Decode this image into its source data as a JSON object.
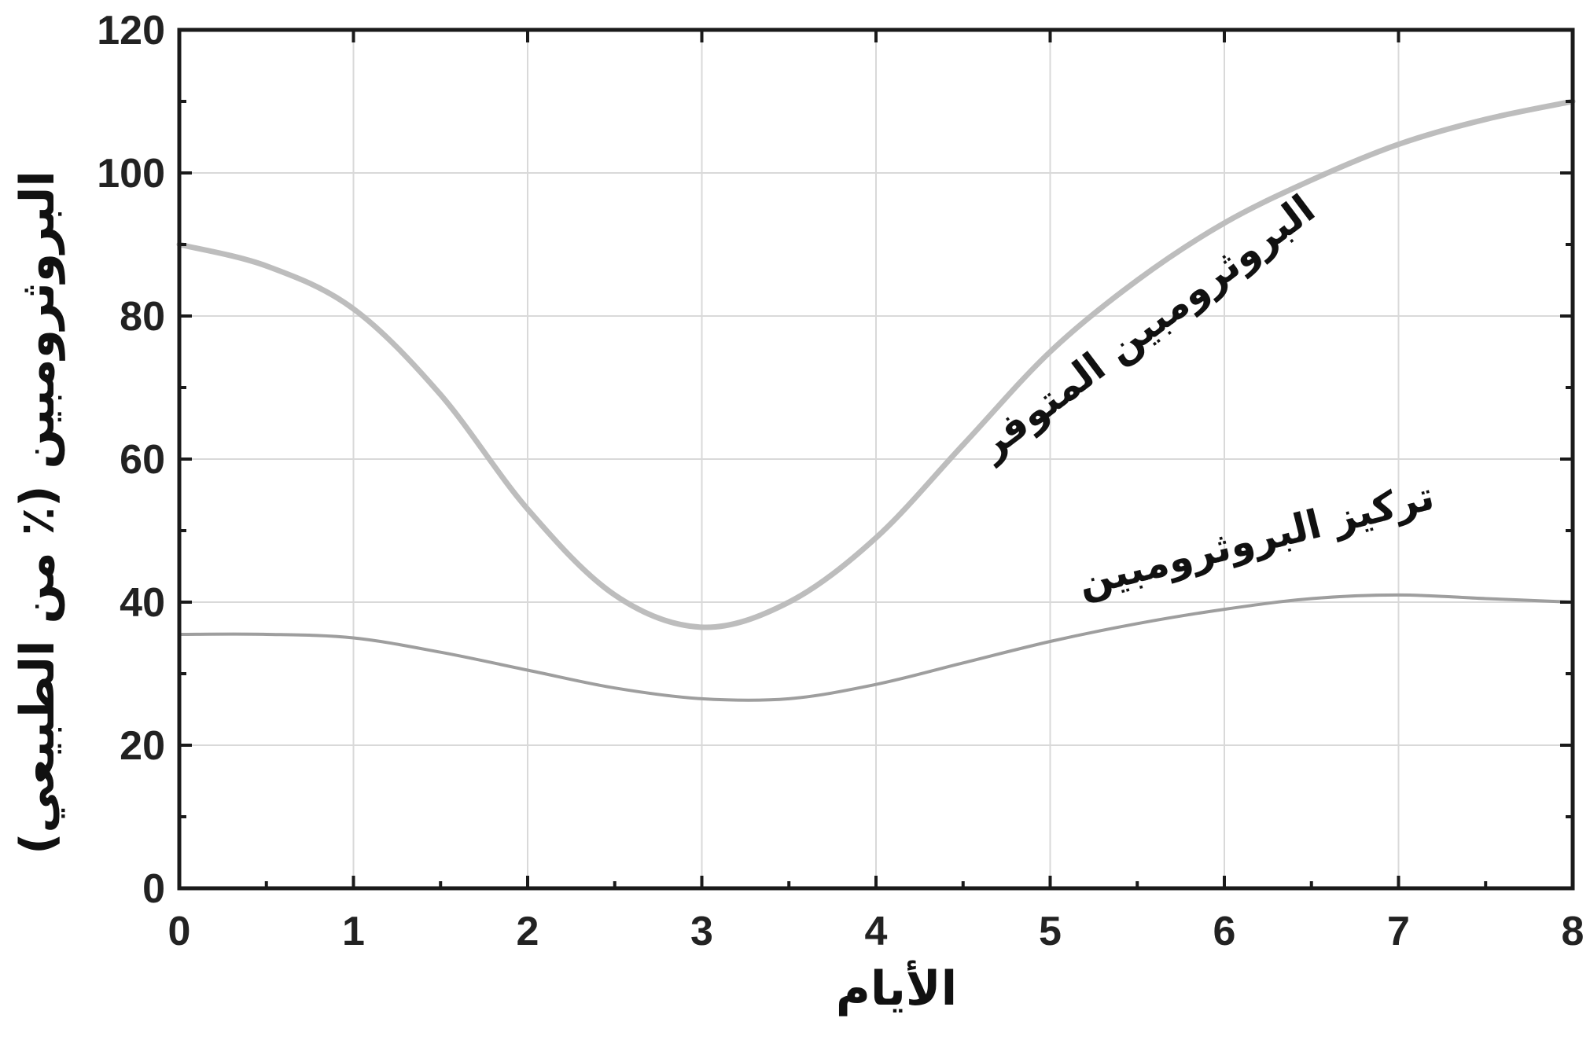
{
  "chart_data": {
    "type": "line",
    "title": "",
    "xlabel": "الأيام",
    "ylabel": "البروثرومبين (٪ من الطبيعي)",
    "xlim": [
      0,
      8
    ],
    "ylim": [
      0,
      120
    ],
    "x_ticks": [
      "0",
      "1",
      "2",
      "3",
      "4",
      "5",
      "6",
      "7",
      "8"
    ],
    "y_ticks": [
      "0",
      "20",
      "40",
      "60",
      "80",
      "100",
      "120"
    ],
    "grid": true,
    "series": [
      {
        "name": "البروثرومبين المتوفر",
        "color": "#bdbdbd",
        "x": [
          0,
          0.5,
          1,
          1.5,
          2,
          2.5,
          3,
          3.5,
          4,
          4.5,
          5,
          5.5,
          6,
          6.5,
          7,
          7.5,
          8
        ],
        "y": [
          90,
          87,
          81,
          69,
          53,
          41,
          36.5,
          40,
          49,
          62,
          75,
          85,
          93,
          99,
          104,
          107.5,
          110
        ]
      },
      {
        "name": "تركيز البروثرومبين",
        "color": "#9e9e9e",
        "x": [
          0,
          0.5,
          1,
          1.5,
          2,
          2.5,
          3,
          3.5,
          4,
          4.5,
          5,
          5.5,
          6,
          6.5,
          7,
          7.5,
          8
        ],
        "y": [
          35.5,
          35.5,
          35,
          33,
          30.5,
          28,
          26.5,
          26.5,
          28.5,
          31.5,
          34.5,
          37,
          39,
          40.5,
          41,
          40.5,
          40
        ]
      }
    ]
  }
}
